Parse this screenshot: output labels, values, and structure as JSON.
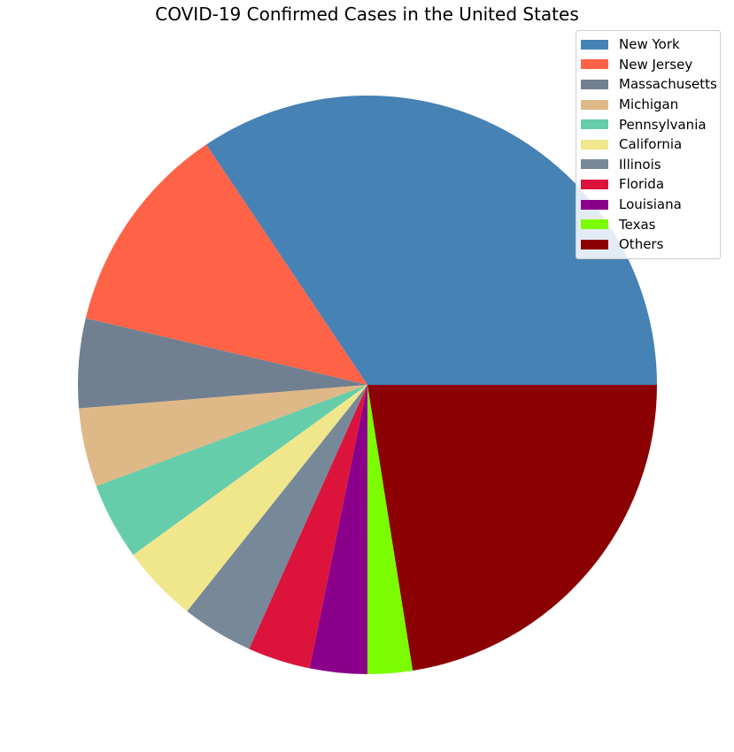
{
  "chart_data": {
    "type": "pie",
    "title": "COVID-19 Confirmed Cases in the United States",
    "legend_position": "top-right",
    "slices": [
      {
        "label": "New York",
        "fraction": 0.344,
        "color": "#4682b4"
      },
      {
        "label": "New Jersey",
        "fraction": 0.119,
        "color": "#ff6347"
      },
      {
        "label": "Massachusetts",
        "fraction": 0.05,
        "color": "#708090"
      },
      {
        "label": "Michigan",
        "fraction": 0.044,
        "color": "#deb887"
      },
      {
        "label": "Pennsylvania",
        "fraction": 0.043,
        "color": "#66cdaa"
      },
      {
        "label": "California",
        "fraction": 0.043,
        "color": "#f0e68c"
      },
      {
        "label": "Illinois",
        "fraction": 0.04,
        "color": "#778899"
      },
      {
        "label": "Florida",
        "fraction": 0.035,
        "color": "#dc143c"
      },
      {
        "label": "Louisiana",
        "fraction": 0.032,
        "color": "#8b008b"
      },
      {
        "label": "Texas",
        "fraction": 0.025,
        "color": "#7cfc00"
      },
      {
        "label": "Others",
        "fraction": 0.225,
        "color": "#8b0000"
      }
    ]
  }
}
